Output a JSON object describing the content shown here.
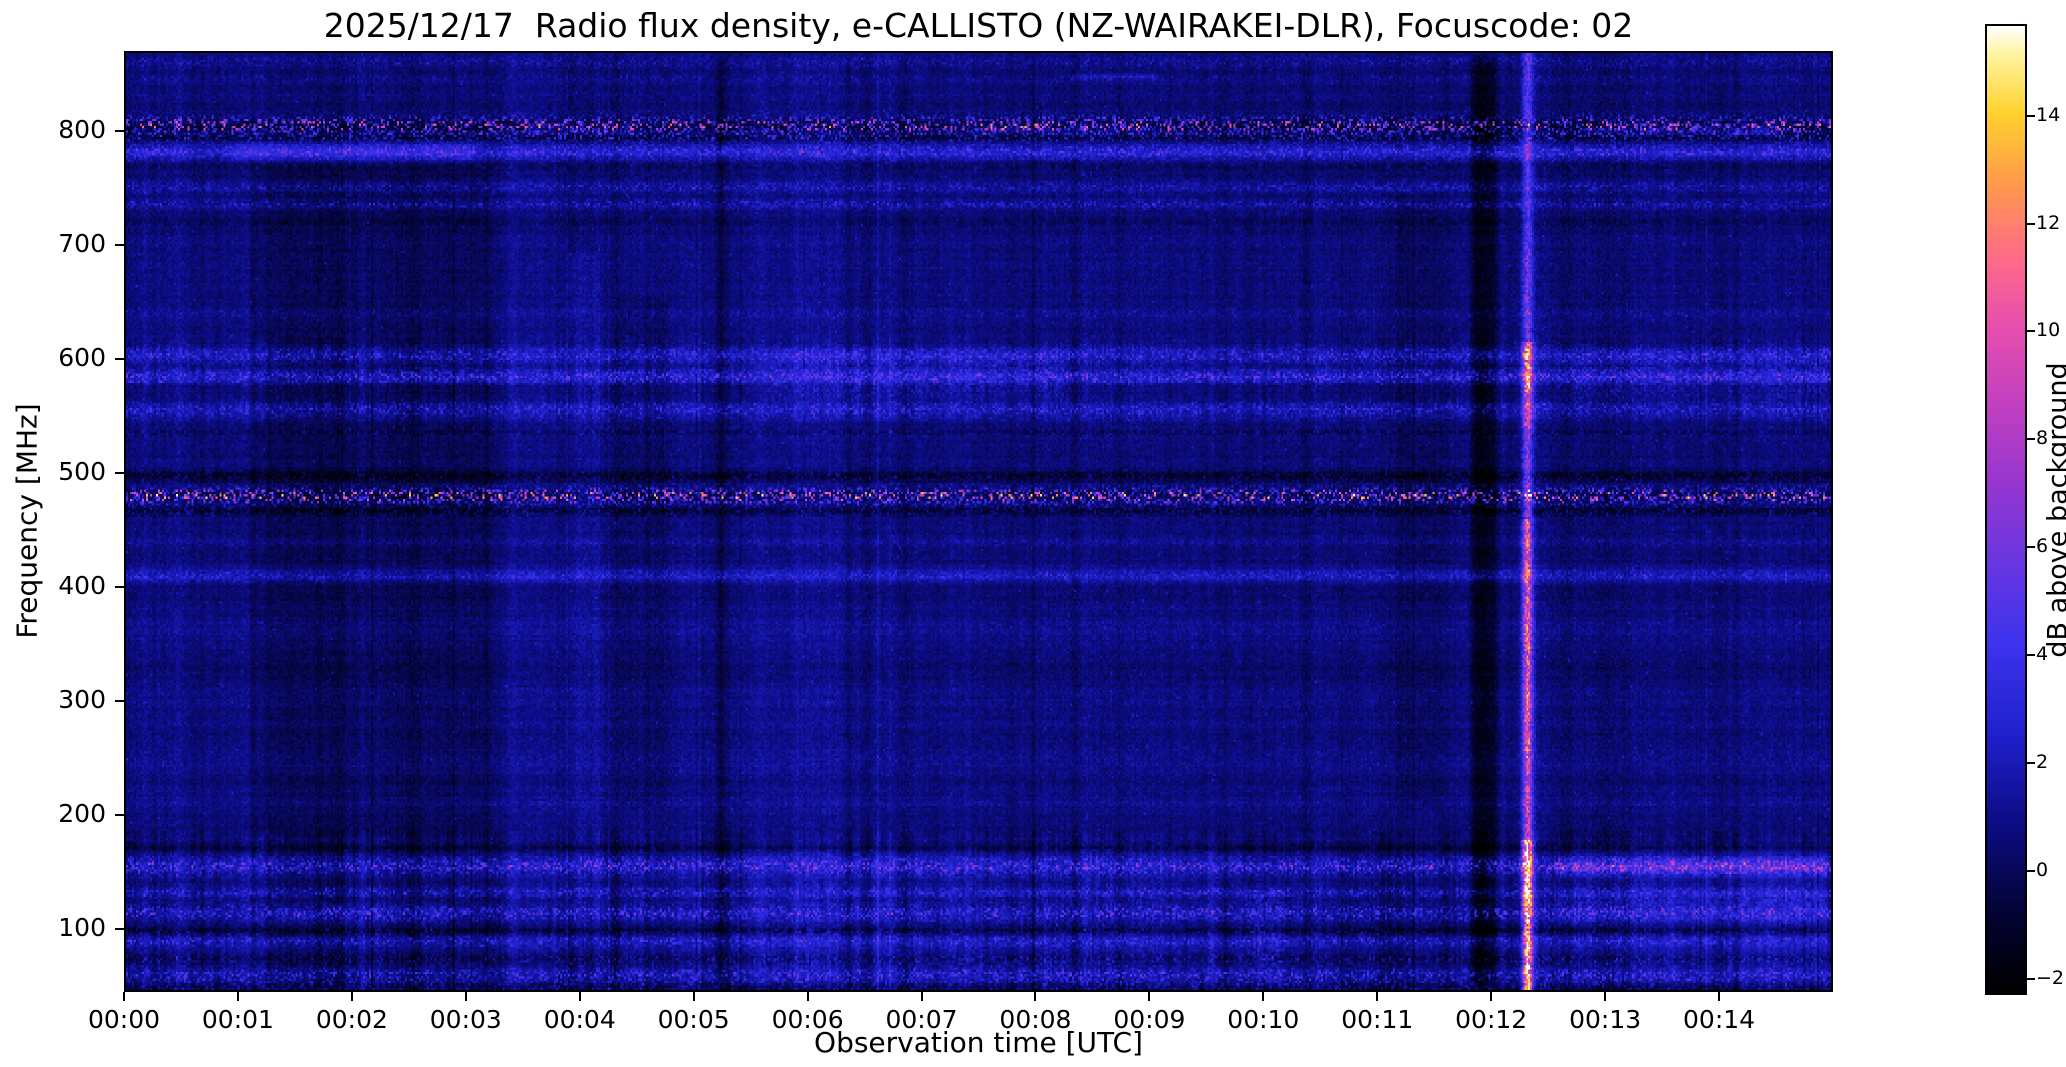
{
  "chart_data": {
    "type": "heatmap",
    "title": "2025/12/17  Radio flux density, e-CALLISTO (NZ-WAIRAKEI-DLR), Focuscode: 02",
    "xlabel": "Observation time [UTC]",
    "ylabel": "Frequency [MHz]",
    "x_range_minutes": [
      0,
      15
    ],
    "x_tick_minutes": [
      0,
      1,
      2,
      3,
      4,
      5,
      6,
      7,
      8,
      9,
      10,
      11,
      12,
      13,
      14
    ],
    "x_tick_labels": [
      "00:00",
      "00:01",
      "00:02",
      "00:03",
      "00:04",
      "00:05",
      "00:06",
      "00:07",
      "00:08",
      "00:09",
      "00:10",
      "00:11",
      "00:12",
      "00:13",
      "00:14"
    ],
    "y_range_mhz": [
      45,
      870
    ],
    "y_tick_values": [
      100,
      200,
      300,
      400,
      500,
      600,
      700,
      800
    ],
    "y_tick_labels": [
      "100",
      "200",
      "300",
      "400",
      "500",
      "600",
      "700",
      "800"
    ],
    "colorbar": {
      "label": "dB above background",
      "tick_values": [
        -2,
        0,
        2,
        4,
        6,
        8,
        10,
        12,
        14
      ],
      "tick_labels": [
        "−2",
        "0",
        "2",
        "4",
        "6",
        "8",
        "10",
        "12",
        "14"
      ],
      "range_db": [
        -2.3,
        15.7
      ]
    },
    "colormap": {
      "name": "gnuplot2-like",
      "stops": [
        [
          0.0,
          "#000000"
        ],
        [
          0.09,
          "#04043a"
        ],
        [
          0.18,
          "#0d0d8a"
        ],
        [
          0.27,
          "#2121cf"
        ],
        [
          0.36,
          "#3d33ee"
        ],
        [
          0.45,
          "#6b36e0"
        ],
        [
          0.53,
          "#9836cf"
        ],
        [
          0.61,
          "#c340c0"
        ],
        [
          0.69,
          "#e84fae"
        ],
        [
          0.76,
          "#ff6b88"
        ],
        [
          0.84,
          "#ff9c4a"
        ],
        [
          0.91,
          "#ffd22e"
        ],
        [
          0.97,
          "#fff4a0"
        ],
        [
          1.0,
          "#ffffff"
        ]
      ]
    },
    "background_db": 0.45,
    "noise": {
      "pixel_db": 1.1,
      "column_stripe_db": 0.4,
      "row_stripe_db": 0.5,
      "speckle_prob": 0.02,
      "speckle_db": 1.4,
      "seed": 1234567
    },
    "rfi_bands": [
      {
        "f": 862,
        "w": 6,
        "steady": 0.35,
        "speckle": 0.9
      },
      {
        "f": 848,
        "w": 3,
        "steady": 0.1,
        "speckle": 0.7
      },
      {
        "f": 806,
        "w": 7,
        "steady": -1.7,
        "speckle": 7.0
      },
      {
        "f": 795,
        "w": 3,
        "steady": -1.2,
        "speckle": 2.0
      },
      {
        "f": 783,
        "w": 6,
        "steady": 1.7,
        "speckle": 2.2
      },
      {
        "f": 770,
        "w": 3,
        "steady": -0.9,
        "speckle": 0.8
      },
      {
        "f": 752,
        "w": 5,
        "steady": 0.25,
        "speckle": 1.3
      },
      {
        "f": 737,
        "w": 4,
        "steady": 0.35,
        "speckle": 1.6
      },
      {
        "f": 720,
        "w": 4,
        "steady": -0.5,
        "speckle": 0.4
      },
      {
        "f": 641,
        "w": 4,
        "steady": 0.25,
        "speckle": 0.7
      },
      {
        "f": 604,
        "w": 7,
        "steady": 1.1,
        "speckle": 1.9
      },
      {
        "f": 585,
        "w": 6,
        "steady": 1.5,
        "speckle": 2.6
      },
      {
        "f": 556,
        "w": 7,
        "steady": 0.9,
        "speckle": 1.7
      },
      {
        "f": 536,
        "w": 4,
        "steady": -0.7,
        "speckle": 0.9
      },
      {
        "f": 497,
        "w": 5,
        "steady": -1.9,
        "speckle": 1.1
      },
      {
        "f": 480,
        "w": 6,
        "steady": -1.1,
        "speckle": 8.5
      },
      {
        "f": 466,
        "w": 4,
        "steady": -1.5,
        "speckle": 1.3
      },
      {
        "f": 440,
        "w": 5,
        "steady": 0.35,
        "speckle": 0.5
      },
      {
        "f": 410,
        "w": 6,
        "steady": 1.3,
        "speckle": 1.3
      },
      {
        "f": 362,
        "w": 9,
        "steady": 0.25,
        "speckle": 0.3
      },
      {
        "f": 300,
        "w": 10,
        "steady": 0.15,
        "speckle": 0.3
      },
      {
        "f": 248,
        "w": 10,
        "steady": 0.3,
        "speckle": 0.4
      },
      {
        "f": 210,
        "w": 6,
        "steady": 0.25,
        "speckle": 0.4
      },
      {
        "f": 170,
        "w": 3,
        "steady": -1.6,
        "speckle": 0.6
      },
      {
        "f": 154,
        "w": 7,
        "steady": 1.1,
        "speckle": 3.2
      },
      {
        "f": 131,
        "w": 5,
        "steady": 0.7,
        "speckle": 1.7
      },
      {
        "f": 113,
        "w": 6,
        "steady": 0.55,
        "speckle": 2.8
      },
      {
        "f": 97,
        "w": 3,
        "steady": -1.7,
        "speckle": 1.1
      },
      {
        "f": 88,
        "w": 5,
        "steady": 0.7,
        "speckle": 1.7
      },
      {
        "f": 72,
        "w": 4,
        "steady": -0.9,
        "speckle": 1.5
      },
      {
        "f": 58,
        "w": 6,
        "steady": 0.55,
        "speckle": 2.4
      },
      {
        "f": 48,
        "w": 4,
        "steady": -1.0,
        "speckle": 1.3
      }
    ],
    "time_features": [
      {
        "t0": 0.0,
        "t1": 0.5,
        "f0": 45,
        "f1": 870,
        "amp": 0.3,
        "mode": "flat"
      },
      {
        "t0": 1.05,
        "t1": 3.25,
        "f0": 175,
        "f1": 775,
        "amp": -0.55,
        "mode": "flat"
      },
      {
        "t0": 1.05,
        "t1": 3.25,
        "f0": 45,
        "f1": 175,
        "amp": -0.25,
        "mode": "flat"
      },
      {
        "t0": 1.3,
        "t1": 2.9,
        "f0": 95,
        "f1": 125,
        "amp": 0.9,
        "mode": "speckle"
      },
      {
        "t0": 0.9,
        "t1": 3.1,
        "f0": 772,
        "f1": 795,
        "amp": 1.2,
        "mode": "flat"
      },
      {
        "t0": 3.3,
        "t1": 3.8,
        "f0": 45,
        "f1": 870,
        "amp": 0.25,
        "mode": "flat"
      },
      {
        "t0": 3.85,
        "t1": 4.2,
        "f0": 90,
        "f1": 700,
        "amp": 0.6,
        "mode": "flat"
      },
      {
        "t0": 3.5,
        "t1": 4.5,
        "f0": 796,
        "f1": 812,
        "amp": 1.5,
        "mode": "speckle"
      },
      {
        "t0": 4.3,
        "t1": 4.8,
        "f0": 200,
        "f1": 660,
        "amp": -0.45,
        "mode": "flat"
      },
      {
        "t0": 5.18,
        "t1": 5.28,
        "f0": 45,
        "f1": 870,
        "amp": -1.1,
        "mode": "flat"
      },
      {
        "t0": 5.3,
        "t1": 6.35,
        "f0": 45,
        "f1": 870,
        "amp": 0.4,
        "mode": "flat"
      },
      {
        "t0": 5.3,
        "t1": 6.3,
        "f0": 45,
        "f1": 178,
        "amp": 0.6,
        "mode": "speckle"
      },
      {
        "t0": 5.6,
        "t1": 8.3,
        "f0": 560,
        "f1": 612,
        "amp": 0.9,
        "mode": "speckle"
      },
      {
        "t0": 6.3,
        "t1": 9.3,
        "f0": 45,
        "f1": 178,
        "amp": 0.5,
        "mode": "speckle"
      },
      {
        "t0": 7.4,
        "t1": 9.1,
        "f0": 796,
        "f1": 812,
        "amp": 1.6,
        "mode": "speckle"
      },
      {
        "t0": 8.3,
        "t1": 9.1,
        "f0": 845,
        "f1": 853,
        "amp": 1.4,
        "mode": "flat"
      },
      {
        "t0": 9.45,
        "t1": 9.67,
        "f0": 45,
        "f1": 178,
        "amp": 0.9,
        "mode": "speckle"
      },
      {
        "t0": 9.8,
        "t1": 10.2,
        "f0": 45,
        "f1": 140,
        "amp": 1.3,
        "mode": "speckle"
      },
      {
        "t0": 10.3,
        "t1": 10.45,
        "f0": 45,
        "f1": 870,
        "amp": -0.6,
        "mode": "flat"
      },
      {
        "t0": 10.85,
        "t1": 11.15,
        "f0": 45,
        "f1": 870,
        "amp": 0.25,
        "mode": "flat"
      },
      {
        "t0": 11.15,
        "t1": 11.6,
        "f0": 200,
        "f1": 750,
        "amp": -0.5,
        "mode": "flat"
      },
      {
        "t0": 11.8,
        "t1": 12.1,
        "f0": 45,
        "f1": 870,
        "amp": -1.7,
        "mode": "flat"
      },
      {
        "t0": 12.55,
        "t1": 15.0,
        "f0": 45,
        "f1": 178,
        "amp": 0.7,
        "mode": "flat"
      },
      {
        "t0": 12.55,
        "t1": 15.0,
        "f0": 143,
        "f1": 164,
        "amp": 3.4,
        "mode": "speckle"
      },
      {
        "t0": 12.55,
        "t1": 15.0,
        "f0": 100,
        "f1": 136,
        "amp": 1.1,
        "mode": "speckle"
      },
      {
        "t0": 12.9,
        "t1": 14.6,
        "f0": 795,
        "f1": 812,
        "amp": 2.2,
        "mode": "speckle"
      },
      {
        "t0": 12.55,
        "t1": 15.0,
        "f0": 560,
        "f1": 610,
        "amp": 0.8,
        "mode": "speckle"
      }
    ],
    "burst": {
      "description": "Strong broadband burst column near 00:12.3 UTC, saturating below ~180 MHz and around 540-615 MHz",
      "time_center_min": 12.33,
      "sigma_min": 0.045,
      "freq_amp_segments": [
        [
          45,
          120,
          14
        ],
        [
          120,
          178,
          17
        ],
        [
          178,
          250,
          9
        ],
        [
          250,
          460,
          11
        ],
        [
          460,
          540,
          7
        ],
        [
          540,
          572,
          10
        ],
        [
          572,
          615,
          13
        ],
        [
          615,
          700,
          6
        ],
        [
          700,
          870,
          5
        ]
      ]
    }
  }
}
